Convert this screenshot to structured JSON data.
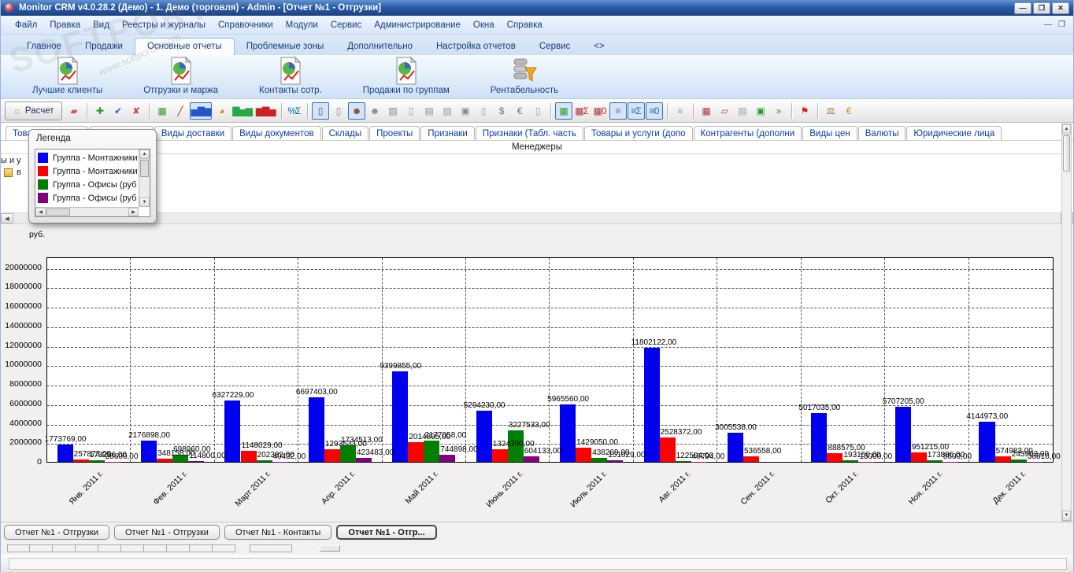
{
  "window": {
    "title": "Monitor CRM v4.0.28.2 (Демо) - 1. Демо (торговля) - Admin - [Отчет №1 - Отгрузки]",
    "minimize": "—",
    "maximize": "❐",
    "close": "✕"
  },
  "watermark": {
    "big": "SOFTPORTAL",
    "small": "www.softportal.com"
  },
  "menu": {
    "items": [
      {
        "label": "Файл"
      },
      {
        "label": "Правка"
      },
      {
        "label": "Вид"
      },
      {
        "label": "Реестры и журналы"
      },
      {
        "label": "Справочники"
      },
      {
        "label": "Модули"
      },
      {
        "label": "Сервис"
      },
      {
        "label": "Администрирование"
      },
      {
        "label": "Окна"
      },
      {
        "label": "Справка"
      }
    ],
    "mdi_minimize": "—",
    "mdi_restore": "❐"
  },
  "ribbon_tabs": [
    {
      "label": "Главное"
    },
    {
      "label": "Продажи"
    },
    {
      "label": "Основные отчеты",
      "active": true
    },
    {
      "label": "Проблемные зоны"
    },
    {
      "label": "Дополнительно"
    },
    {
      "label": "Настройка отчетов"
    },
    {
      "label": "Сервис"
    },
    {
      "label": "<>"
    }
  ],
  "big_buttons": [
    {
      "label": "Лучшие клиенты"
    },
    {
      "label": "Отгрузки и маржа"
    },
    {
      "label": "Контакты сотр."
    },
    {
      "label": "Продажи по группам"
    },
    {
      "label": "Рентабельность"
    }
  ],
  "toolbar": {
    "calc_label": "Расчет",
    "left_icons": [
      {
        "name": "eraser-icon",
        "glyph": "▰",
        "color": "#d4586f"
      },
      {
        "sep": true
      },
      {
        "name": "add-report-icon",
        "glyph": "✚",
        "color": "#2d9a2d"
      },
      {
        "name": "apply-report-icon",
        "glyph": "✔",
        "color": "#2d62c9"
      },
      {
        "name": "delete-report-icon",
        "glyph": "✘",
        "color": "#cf3a3a"
      },
      {
        "sep": true
      },
      {
        "name": "table-view-icon",
        "glyph": "▦",
        "color": "#2d9a2d"
      },
      {
        "name": "line-graph-icon",
        "glyph": "╱",
        "color": "#cc2222"
      },
      {
        "name": "bar-chart-icon",
        "glyph": "▅▇▆",
        "color": "#2255cc",
        "boxed": true
      },
      {
        "name": "pie-chart-icon",
        "glyph": "◕",
        "color": "#dd8800"
      },
      {
        "name": "stacked-bar-icon",
        "glyph": "▇▅▆",
        "color": "#22aa44"
      },
      {
        "name": "histogram-icon",
        "glyph": "▆▇▅",
        "color": "#cc2222"
      },
      {
        "sep": true
      },
      {
        "name": "percent-sum-icon",
        "glyph": "%Σ",
        "color": "#1166aa"
      }
    ],
    "mid_icons": [
      {
        "name": "doc-lock-icon",
        "glyph": "▯",
        "color": "#555555",
        "boxed": true
      },
      {
        "name": "doc-gray-icon",
        "glyph": "▯",
        "color": "#8a8a8a"
      },
      {
        "name": "manager-icon",
        "glyph": "☻",
        "color": "#7a4a2a",
        "boxed": true
      },
      {
        "name": "contractor-icon",
        "glyph": "☻",
        "color": "#8a8a8a"
      },
      {
        "name": "group-icon",
        "glyph": "▨",
        "color": "#8a8a8a"
      },
      {
        "name": "doc-type-icon",
        "glyph": "▯",
        "color": "#9a9a9a"
      },
      {
        "name": "warehouse-icon",
        "glyph": "▤",
        "color": "#8a8a8a"
      },
      {
        "name": "project-icon",
        "glyph": "▨",
        "color": "#9a9a9a"
      },
      {
        "name": "attribute-icon",
        "glyph": "▣",
        "color": "#8a8a8a"
      },
      {
        "name": "goods-icon",
        "glyph": "▯",
        "color": "#9a9a9a"
      },
      {
        "name": "price-kind-icon",
        "glyph": "$",
        "color": "#777777"
      },
      {
        "name": "currency-icon",
        "glyph": "€",
        "color": "#777777"
      },
      {
        "name": "legal-entity-icon",
        "glyph": "▯",
        "color": "#9a9a9a"
      }
    ],
    "right_icons": [
      {
        "name": "grid-sum-icon",
        "glyph": "▦",
        "color": "#2d9a2d",
        "boxed": true
      },
      {
        "name": "grid-sigma-icon",
        "glyph": "▦Σ",
        "color": "#b33333"
      },
      {
        "name": "grid-zero-icon",
        "glyph": "▦0",
        "color": "#b33333"
      },
      {
        "name": "rows-icon",
        "glyph": "≡",
        "color": "#667788",
        "boxed": true
      },
      {
        "name": "rows-sigma-icon",
        "glyph": "≡Σ",
        "color": "#117788",
        "boxed": true
      },
      {
        "name": "rows-zero-icon",
        "glyph": "≡0",
        "color": "#117788",
        "boxed": true
      },
      {
        "sep": true
      },
      {
        "name": "rows-gray-icon",
        "glyph": "≡",
        "color": "#999999"
      },
      {
        "sep": true
      },
      {
        "name": "grid-red-icon",
        "glyph": "▦",
        "color": "#b33333"
      },
      {
        "name": "edit-plan-icon",
        "glyph": "▱",
        "color": "#aa6600"
      },
      {
        "name": "gray-table-icon",
        "glyph": "▤",
        "color": "#999999"
      },
      {
        "name": "book-icon",
        "glyph": "▣",
        "color": "#2d9a2d"
      },
      {
        "name": "export-icon",
        "glyph": "»",
        "color": "#2d9a2d"
      },
      {
        "sep": true
      },
      {
        "name": "flag-icon",
        "glyph": "⚑",
        "color": "#cc2222"
      },
      {
        "sep": true
      },
      {
        "name": "scales-icon",
        "glyph": "⚖",
        "color": "#8a6a1a"
      },
      {
        "name": "coin-icon",
        "glyph": "€",
        "color": "#c9940a"
      }
    ]
  },
  "category_tabs": [
    {
      "label": "Товары и услуги"
    },
    {
      "label": "Менеджеры"
    },
    {
      "label": "Виды доставки"
    },
    {
      "label": "Виды документов"
    },
    {
      "label": "Склады"
    },
    {
      "label": "Проекты"
    },
    {
      "label": "Признаки"
    },
    {
      "label": "Признаки (Табл. часть"
    },
    {
      "label": "Товары и услуги (допо"
    },
    {
      "label": "Контрагенты (дополни"
    },
    {
      "label": "Виды цен"
    },
    {
      "label": "Валюты"
    },
    {
      "label": "Юридические лица"
    }
  ],
  "group_header": "Менеджеры",
  "tree_fragment": {
    "clipped_text": "ы и у",
    "item_letter": "в"
  },
  "legend": {
    "title": "Легенда",
    "items": [
      {
        "color": "#0000ff",
        "label": "Группа - Монтажники ("
      },
      {
        "color": "#ff0000",
        "label": "Группа - Монтажники ("
      },
      {
        "color": "#008000",
        "label": "Группа - Офисы (руб. ("
      },
      {
        "color": "#800080",
        "label": "Группа - Офисы (руб. ("
      }
    ]
  },
  "chart_data": {
    "type": "bar",
    "title": "",
    "ylabel": "руб.",
    "ylim": [
      0,
      21100000
    ],
    "yticks": [
      0,
      2000000,
      4000000,
      6000000,
      8000000,
      10000000,
      12000000,
      14000000,
      16000000,
      18000000,
      20000000
    ],
    "grid": true,
    "legend_position": "floating",
    "value_label_decimals": ",00",
    "categories": [
      "Янв. 2011 г.",
      "Фев. 2011 г.",
      "Март 2011 г.",
      "Апр. 2011 г.",
      "Май 2011 г.",
      "Июнь 2011 г.",
      "Июль 2011 г.",
      "Авг. 2011 г.",
      "Сен. 2011 г.",
      "Окт. 2011 г.",
      "Ноя. 2011 г.",
      "Дек. 2011 г."
    ],
    "series": [
      {
        "name": "Группа - Монтажники (",
        "color": "#0000ee",
        "values": [
          1773769,
          2176898,
          6327229,
          6697403,
          9399855,
          5294230,
          5965560,
          11802122,
          3005538,
          5017035,
          5707205,
          4144973
        ]
      },
      {
        "name": "Группа - Монтажники (",
        "color": "#ff0000",
        "values": [
          257873,
          348158,
          1148029,
          1293533,
          2014895,
          1324390,
          1429050,
          2528372,
          536558,
          888575,
          951215,
          574983
        ]
      },
      {
        "name": "Группа - Офисы (руб. (",
        "color": "#008000",
        "values": [
          173236,
          698960,
          202382,
          1734513,
          2177058,
          3227533,
          438269,
          122504,
          null,
          193150,
          173886,
          245903
        ]
      },
      {
        "name": "Группа - Офисы (руб. (",
        "color": "#800080",
        "values": [
          28600,
          114800,
          40432,
          423483,
          744898,
          604133,
          151029,
          40794,
          null,
          13000,
          8600,
          38810
        ]
      }
    ]
  },
  "bottom_tabs": [
    {
      "label": "Отчет №1 - Отгрузки"
    },
    {
      "label": "Отчет №1 - Отгрузки"
    },
    {
      "label": "Отчет №1 - Контакты"
    },
    {
      "label": "Отчет №1 - Отгр...",
      "active": true
    }
  ]
}
